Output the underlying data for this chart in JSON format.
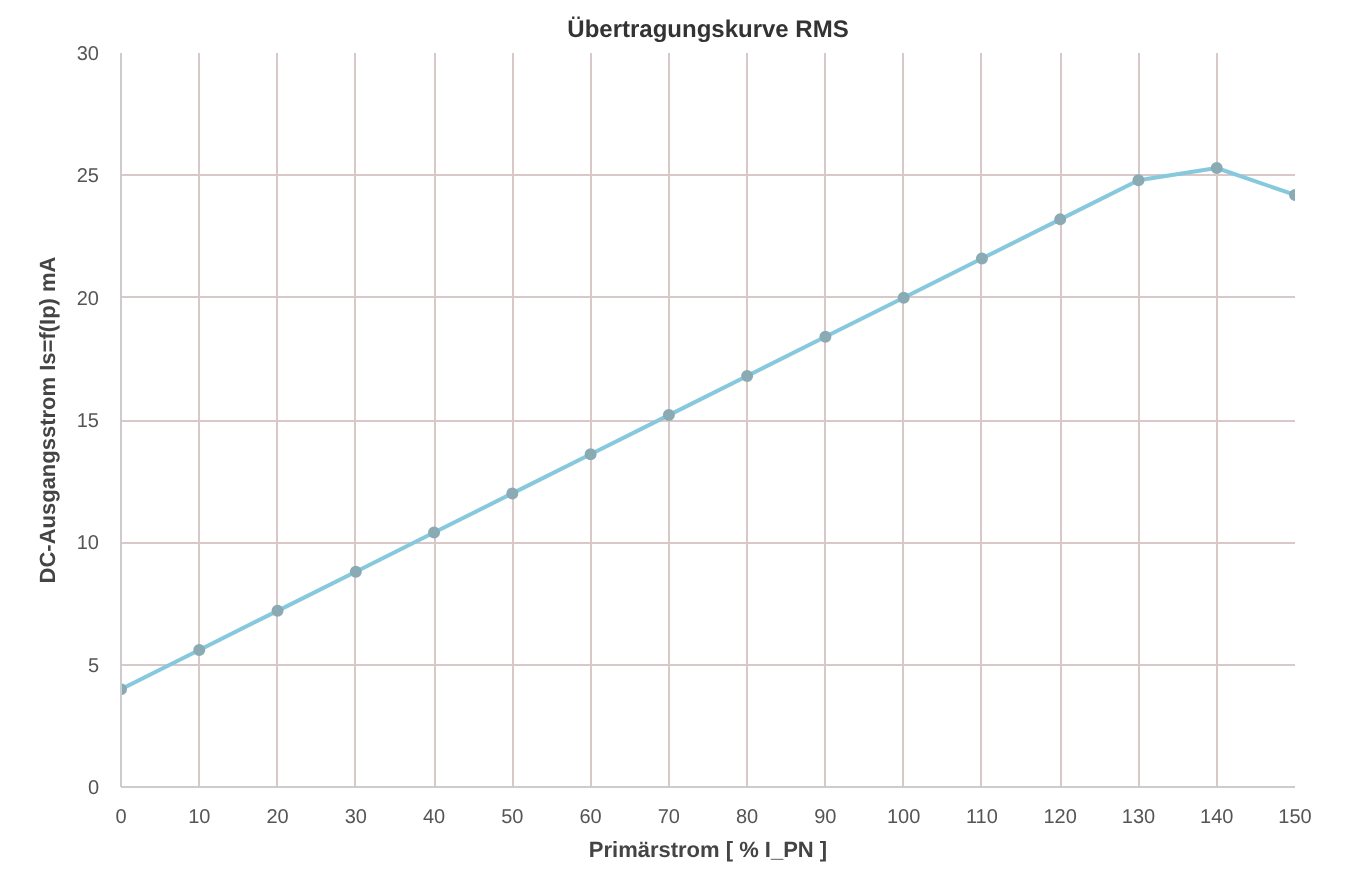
{
  "chart_data": {
    "type": "line",
    "title": "Übertragungskurve RMS",
    "xlabel": "Primärstrom [ % I_PN ]",
    "ylabel": "DC-Ausgangsstrom Is=f(Ip) mA",
    "x": [
      0,
      10,
      20,
      30,
      40,
      50,
      60,
      70,
      80,
      90,
      100,
      110,
      120,
      130,
      140,
      150
    ],
    "series": [
      {
        "color": "#86c8dc",
        "values": [
          4.0,
          5.6,
          7.2,
          8.8,
          10.4,
          12.0,
          13.6,
          15.2,
          16.8,
          18.4,
          20.0,
          21.6,
          23.2,
          24.8,
          25.3,
          24.2
        ]
      }
    ],
    "xlim": [
      0,
      150
    ],
    "xticks": [
      0,
      10,
      20,
      30,
      40,
      50,
      60,
      70,
      80,
      90,
      100,
      110,
      120,
      130,
      140,
      150
    ],
    "ylim": [
      0,
      30
    ],
    "yticks": [
      0,
      5,
      10,
      15,
      20,
      25,
      30
    ],
    "grid": true,
    "marker": "circle",
    "line_style": "solid"
  }
}
